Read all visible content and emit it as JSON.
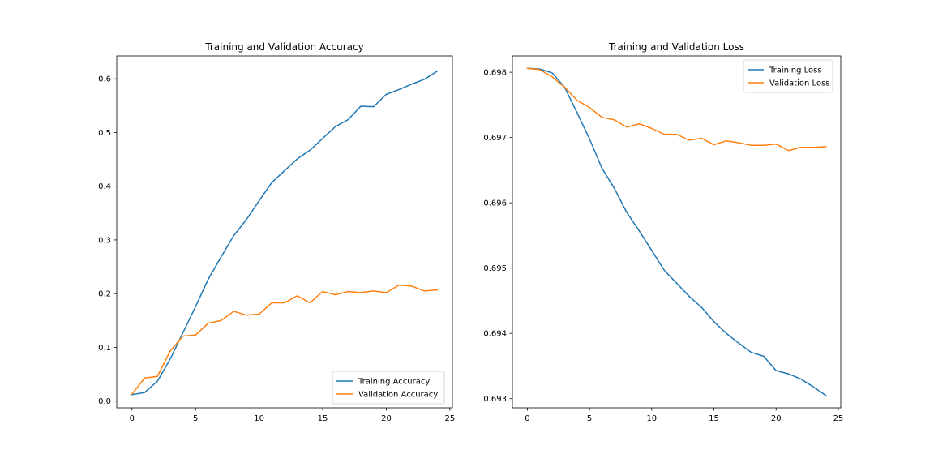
{
  "chart_data": [
    {
      "type": "line",
      "title": "Training and Validation Accuracy",
      "xlabel": "",
      "ylabel": "",
      "xlim": [
        -1.2,
        25.2
      ],
      "ylim": [
        -0.0125,
        0.6425
      ],
      "x_ticks": [
        0,
        5,
        10,
        15,
        20,
        25
      ],
      "y_ticks": [
        0.0,
        0.1,
        0.2,
        0.3,
        0.4,
        0.5,
        0.6
      ],
      "y_tick_labels": [
        "0.0",
        "0.1",
        "0.2",
        "0.3",
        "0.4",
        "0.5",
        "0.6"
      ],
      "legend_position": "lower-right",
      "grid": false,
      "x": [
        0,
        1,
        2,
        3,
        4,
        5,
        6,
        7,
        8,
        9,
        10,
        11,
        12,
        13,
        14,
        15,
        16,
        17,
        18,
        19,
        20,
        21,
        22,
        23,
        24
      ],
      "series": [
        {
          "name": "Training Accuracy",
          "color": "#1f77b4",
          "values": [
            0.012,
            0.016,
            0.037,
            0.078,
            0.127,
            0.176,
            0.227,
            0.268,
            0.308,
            0.338,
            0.373,
            0.407,
            0.429,
            0.451,
            0.467,
            0.489,
            0.511,
            0.524,
            0.549,
            0.548,
            0.571,
            0.58,
            0.59,
            0.599,
            0.614
          ]
        },
        {
          "name": "Validation Accuracy",
          "color": "#ff7f0e",
          "values": [
            0.013,
            0.043,
            0.046,
            0.093,
            0.121,
            0.123,
            0.145,
            0.15,
            0.167,
            0.16,
            0.162,
            0.183,
            0.183,
            0.196,
            0.183,
            0.204,
            0.198,
            0.204,
            0.202,
            0.205,
            0.202,
            0.216,
            0.214,
            0.205,
            0.207
          ]
        }
      ]
    },
    {
      "type": "line",
      "title": "Training and Validation Loss",
      "xlabel": "",
      "ylabel": "",
      "xlim": [
        -1.2,
        25.2
      ],
      "ylim": [
        0.69286,
        0.69825
      ],
      "x_ticks": [
        0,
        5,
        10,
        15,
        20,
        25
      ],
      "y_ticks": [
        0.693,
        0.694,
        0.695,
        0.696,
        0.697,
        0.698
      ],
      "y_tick_labels": [
        "0.693",
        "0.694",
        "0.695",
        "0.696",
        "0.697",
        "0.698"
      ],
      "legend_position": "upper-right",
      "grid": false,
      "x": [
        0,
        1,
        2,
        3,
        4,
        5,
        6,
        7,
        8,
        9,
        10,
        11,
        12,
        13,
        14,
        15,
        16,
        17,
        18,
        19,
        20,
        21,
        22,
        23,
        24
      ],
      "series": [
        {
          "name": "Training Loss",
          "color": "#1f77b4",
          "values": [
            0.69806,
            0.69805,
            0.69799,
            0.69777,
            0.69738,
            0.69698,
            0.69653,
            0.69622,
            0.69585,
            0.69557,
            0.69527,
            0.69497,
            0.69477,
            0.69457,
            0.6944,
            0.69418,
            0.694,
            0.69385,
            0.69371,
            0.69365,
            0.69343,
            0.69338,
            0.6933,
            0.69318,
            0.69305
          ]
        },
        {
          "name": "Validation Loss",
          "color": "#ff7f0e",
          "values": [
            0.69806,
            0.69804,
            0.69793,
            0.69777,
            0.69757,
            0.69746,
            0.69731,
            0.69727,
            0.69716,
            0.69721,
            0.69714,
            0.69705,
            0.69705,
            0.69696,
            0.69699,
            0.69689,
            0.69695,
            0.69692,
            0.69688,
            0.69688,
            0.6969,
            0.6968,
            0.69685,
            0.69685,
            0.69686
          ]
        }
      ]
    }
  ]
}
